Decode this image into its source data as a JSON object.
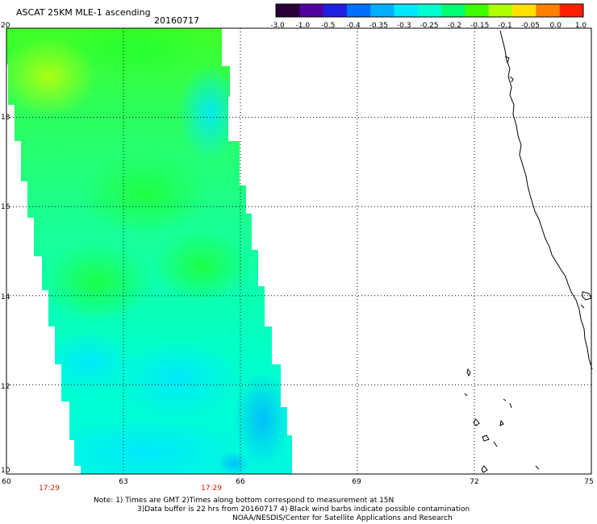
{
  "title": "ASCAT 25KM MLE-1 ascending",
  "date": "20160717",
  "colorbar": {
    "labels": [
      "-3.0",
      "-1.0",
      "-0.5",
      "-0.4",
      "-0.35",
      "-0.3",
      "-0.25",
      "-0.2",
      "-0.15",
      "-0.1",
      "-0.05",
      "0.0",
      "1.0"
    ],
    "colors": [
      "#2a0038",
      "#5200a0",
      "#2020e0",
      "#0070ff",
      "#00b0ff",
      "#00e8ff",
      "#00ffd0",
      "#00ff70",
      "#40ff00",
      "#b0ff00",
      "#ffe000",
      "#ff8000",
      "#ff2000"
    ]
  },
  "map": {
    "lat_labels": [
      "20",
      "18",
      "16",
      "14",
      "12",
      "10"
    ],
    "lon_labels": [
      "60",
      "63",
      "66",
      "69",
      "72",
      "75"
    ],
    "lat_range": [
      10,
      20
    ],
    "lon_range": [
      60,
      75
    ]
  },
  "times": [
    "17:29",
    "17:29"
  ],
  "notes": [
    "Note: 1) Times are GMT 2)Times along bottom correspond to measurement at 15N",
    "3)Data buffer is 22 hrs from 20160717 4) Black wind barbs indicate possible contamination",
    "NOAA/NESDIS/Center for Satellite Applications and Research"
  ]
}
